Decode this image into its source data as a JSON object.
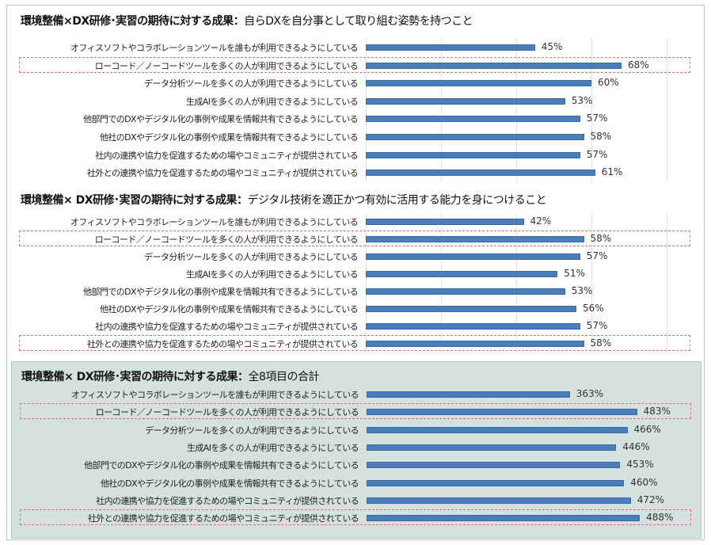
{
  "chart_data": [
    {
      "type": "bar",
      "orientation": "horizontal",
      "title_bold": "環境整備×DX研修･実習の期待に対する成果：",
      "title_rest": "自らDXを自分事として取り組む姿勢を持つこと",
      "categories": [
        "オフィスソフトやコラボレーションツールを誰もが利用できるようにしている",
        "ローコード／ノーコードツールを多くの人が利用できるようにしている",
        "データ分析ツールを多くの人が利用できるようにしている",
        "生成AIを多くの人が利用できるようにしている",
        "他部門でのDXやデジタル化の事例や成果を情報共有できるようにしている",
        "他社のDXやデジタル化の事例や成果を情報共有できるようにしている",
        "社内の連携や協力を促進するための場やコミュニティが提供されている",
        "社外との連携や協力を促進するための場やコミュニティが提供されている"
      ],
      "values": [
        45,
        68,
        60,
        53,
        57,
        58,
        57,
        61
      ],
      "labels": [
        "45%",
        "68%",
        "60%",
        "53%",
        "57%",
        "58%",
        "57%",
        "61%"
      ],
      "highlighted": [
        1
      ],
      "xlim": [
        0,
        80
      ],
      "grid": true
    },
    {
      "type": "bar",
      "orientation": "horizontal",
      "title_bold": "環境整備× DX研修･実習の期待に対する成果：",
      "title_rest": "デジタル技術を適正かつ有効に活用する能力を身につけること",
      "categories": [
        "オフィスソフトやコラボレーションツールを誰もが利用できるようにしている",
        "ローコード／ノーコードツールを多くの人が利用できるようにしている",
        "データ分析ツールを多くの人が利用できるようにしている",
        "生成AIを多くの人が利用できるようにしている",
        "他部門でのDXやデジタル化の事例や成果を情報共有できるようにしている",
        "他社のDXやデジタル化の事例や成果を情報共有できるようにしている",
        "社内の連携や協力を促進するための場やコミュニティが提供されている",
        "社外との連携や協力を促進するための場やコミュニティが提供されている"
      ],
      "values": [
        42,
        58,
        57,
        51,
        53,
        56,
        57,
        58
      ],
      "labels": [
        "42%",
        "58%",
        "57%",
        "51%",
        "53%",
        "56%",
        "57%",
        "58%"
      ],
      "highlighted": [
        1,
        7
      ],
      "xlim": [
        0,
        80
      ],
      "grid": true
    },
    {
      "type": "bar",
      "orientation": "horizontal",
      "title_bold": "環境整備× DX研修･実習の期待に対する成果：",
      "title_rest": "全8項目の合計",
      "categories": [
        "オフィスソフトやコラボレーションツールを誰もが利用できるようにしている",
        "ローコード／ノーコードツールを多くの人が利用できるようにしている",
        "データ分析ツールを多くの人が利用できるようにしている",
        "生成AIを多くの人が利用できるようにしている",
        "他部門でのDXやデジタル化の事例や成果を情報共有できるようにしている",
        "他社のDXやデジタル化の事例や成果を情報共有できるようにしている",
        "社内の連携や協力を促進するための場やコミュニティが提供されている",
        "社外との連携や協力を促進するための場やコミュニティが提供されている"
      ],
      "values": [
        363,
        483,
        466,
        446,
        453,
        460,
        472,
        488
      ],
      "labels": [
        "363%",
        "483%",
        "466%",
        "446%",
        "453%",
        "460%",
        "472%",
        "488%"
      ],
      "highlighted": [
        1,
        7
      ],
      "xlim": [
        0,
        560
      ],
      "grid": false
    }
  ],
  "colors": {
    "bar": "#4a7ebb",
    "highlight": "#e46c6c",
    "total_panel_bg": "#d4e1de"
  }
}
